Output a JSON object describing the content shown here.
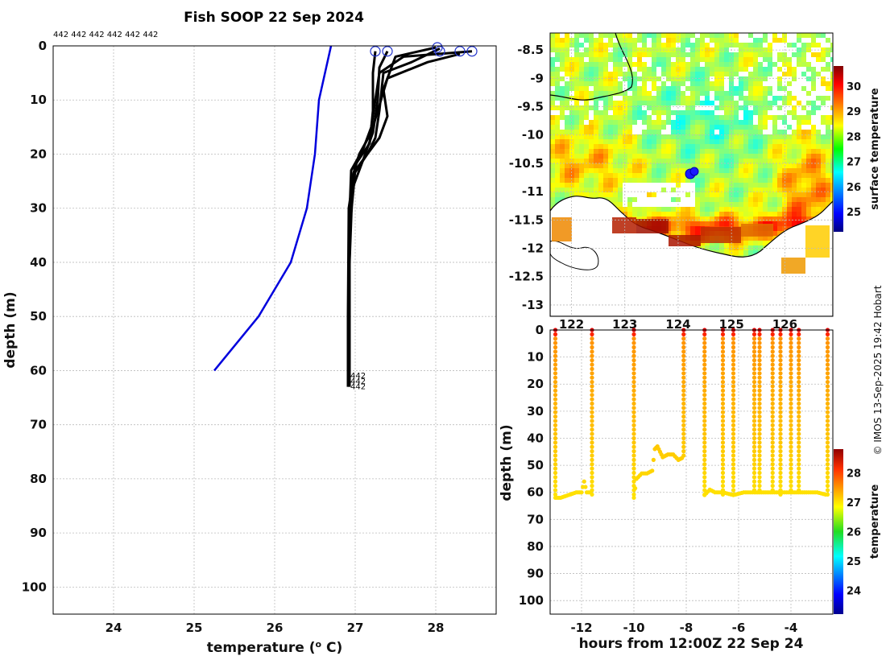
{
  "title": "Fish SOOP 22 Sep 2024",
  "platform_ids": "442 442 442 442 442 442",
  "credit": "© IMOS 13-Sep-2025 19:42 Hobart",
  "colors": {
    "climatology": "#0000dd",
    "profiles": "#000000",
    "surface_marker": "#2233cc"
  },
  "chart_data": [
    {
      "type": "line",
      "name": "temperature-profile",
      "title": "Fish SOOP 22 Sep 2024",
      "xlabel": "temperature (° C)",
      "ylabel": "depth (m)",
      "xlim": [
        23.25,
        28.75
      ],
      "ylim": [
        105,
        0
      ],
      "xticks": [
        24,
        25,
        26,
        27,
        28
      ],
      "yticks": [
        0,
        10,
        20,
        30,
        40,
        50,
        60,
        70,
        80,
        90,
        100
      ],
      "series": [
        {
          "name": "climatology",
          "color": "#0000dd",
          "points": [
            [
              26.7,
              0
            ],
            [
              26.55,
              10
            ],
            [
              26.5,
              20
            ],
            [
              26.4,
              30
            ],
            [
              26.2,
              40
            ],
            [
              25.8,
              50
            ],
            [
              25.25,
              60
            ]
          ]
        },
        {
          "name": "profile-1",
          "color": "#000000",
          "points": [
            [
              28.45,
              1
            ],
            [
              27.6,
              2
            ],
            [
              27.3,
              5
            ],
            [
              27.25,
              10
            ],
            [
              27.2,
              15
            ],
            [
              27.1,
              19
            ],
            [
              26.95,
              23
            ],
            [
              26.92,
              35
            ],
            [
              26.93,
              50
            ],
            [
              26.93,
              61
            ]
          ]
        },
        {
          "name": "profile-2",
          "color": "#000000",
          "points": [
            [
              28.3,
              1.5
            ],
            [
              27.9,
              3
            ],
            [
              27.4,
              6
            ],
            [
              27.3,
              11
            ],
            [
              27.2,
              16
            ],
            [
              27.05,
              20
            ],
            [
              26.95,
              25
            ],
            [
              26.92,
              35
            ],
            [
              26.92,
              50
            ],
            [
              26.92,
              62
            ]
          ]
        },
        {
          "name": "profile-3",
          "color": "#000000",
          "points": [
            [
              28.05,
              0.5
            ],
            [
              27.7,
              3
            ],
            [
              27.35,
              5
            ],
            [
              27.3,
              12
            ],
            [
              27.25,
              17
            ],
            [
              27.15,
              20
            ],
            [
              26.97,
              24
            ],
            [
              26.93,
              40
            ],
            [
              26.93,
              63
            ]
          ]
        },
        {
          "name": "profile-4",
          "color": "#000000",
          "points": [
            [
              27.4,
              1
            ],
            [
              27.3,
              4
            ],
            [
              27.28,
              10
            ],
            [
              27.22,
              16
            ],
            [
              27.1,
              21
            ],
            [
              26.95,
              27
            ],
            [
              26.92,
              45
            ],
            [
              26.92,
              62
            ]
          ]
        },
        {
          "name": "profile-5",
          "color": "#000000",
          "points": [
            [
              27.25,
              1
            ],
            [
              27.22,
              5
            ],
            [
              27.22,
              12
            ],
            [
              27.18,
              18
            ],
            [
              27.0,
              22
            ],
            [
              26.92,
              30
            ],
            [
              26.91,
              50
            ],
            [
              26.91,
              63
            ]
          ]
        },
        {
          "name": "profile-6",
          "color": "#000000",
          "points": [
            [
              28.0,
              0.3
            ],
            [
              27.5,
              2
            ],
            [
              27.35,
              8
            ],
            [
              27.4,
              13
            ],
            [
              27.3,
              17
            ],
            [
              27.2,
              19
            ],
            [
              27.0,
              23
            ],
            [
              26.93,
              34
            ],
            [
              26.92,
              55
            ],
            [
              26.92,
              61
            ]
          ]
        }
      ],
      "surface_markers": [
        [
          27.25,
          1
        ],
        [
          27.4,
          1
        ],
        [
          28.02,
          0.3
        ],
        [
          28.05,
          1
        ],
        [
          28.3,
          1
        ],
        [
          28.45,
          1
        ]
      ],
      "end_labels": [
        {
          "text": "442",
          "t": 27.0,
          "d": 61
        },
        {
          "text": "442",
          "t": 27.0,
          "d": 62
        },
        {
          "text": "442",
          "t": 27.0,
          "d": 63
        }
      ]
    },
    {
      "type": "heatmap",
      "name": "surface-temperature-map",
      "ylim": [
        -13.2,
        -8.2
      ],
      "yticks": [
        -8.5,
        -9,
        -9.5,
        -10,
        -10.5,
        -11,
        -11.5,
        -12,
        -12.5,
        -13
      ],
      "ytick_labels": [
        "-8.5",
        "-9",
        "-9.5",
        "-10",
        "-10.5",
        "-11",
        "-11.5",
        "-12",
        "-12.5",
        "-13"
      ],
      "xticks": [
        122,
        123,
        124,
        125,
        126
      ],
      "xtick_labels": [
        "122",
        "123",
        "124",
        "125",
        "126"
      ],
      "colorbar": {
        "label": "surface temperature",
        "range": [
          24.2,
          30.8
        ],
        "ticks": [
          25,
          26,
          27,
          28,
          29,
          30
        ]
      },
      "vessel_position": {
        "lon": 124.3,
        "lat": -10.7
      }
    },
    {
      "type": "scatter",
      "name": "depth-time-section",
      "xlabel": "hours from 12:00Z 22 Sep 24",
      "ylabel": "depth (m)",
      "xlim": [
        -13.2,
        -2.4
      ],
      "ylim": [
        105,
        0
      ],
      "xticks": [
        -12,
        -10,
        -8,
        -6,
        -4
      ],
      "yticks": [
        0,
        10,
        20,
        30,
        40,
        50,
        60,
        70,
        80,
        90,
        100
      ],
      "colorbar": {
        "label": "temperature",
        "range": [
          23.2,
          28.8
        ],
        "ticks": [
          24,
          25,
          26,
          27,
          28
        ]
      },
      "casts": [
        {
          "t": -13.0,
          "max_depth": 62
        },
        {
          "t": -11.6,
          "max_depth": 61
        },
        {
          "t": -10.0,
          "max_depth": 62
        },
        {
          "t": -8.1,
          "max_depth": 47
        },
        {
          "t": -7.3,
          "max_depth": 61
        },
        {
          "t": -6.6,
          "max_depth": 61
        },
        {
          "t": -6.2,
          "max_depth": 61
        },
        {
          "t": -5.4,
          "max_depth": 60
        },
        {
          "t": -5.2,
          "max_depth": 60
        },
        {
          "t": -4.7,
          "max_depth": 60
        },
        {
          "t": -4.4,
          "max_depth": 61
        },
        {
          "t": -4.0,
          "max_depth": 60
        },
        {
          "t": -3.7,
          "max_depth": 60
        },
        {
          "t": -2.6,
          "max_depth": 61
        }
      ],
      "bottom_track": [
        [
          -13.0,
          62
        ],
        [
          -12.8,
          62
        ],
        [
          -12.5,
          61
        ],
        [
          -12.2,
          60
        ],
        [
          -12.0,
          60
        ],
        [
          -11.9,
          56
        ],
        [
          -11.8,
          60
        ],
        [
          -11.6,
          60
        ],
        [
          -10.0,
          62
        ],
        [
          -9.9,
          55
        ],
        [
          -9.7,
          53
        ],
        [
          -9.5,
          53
        ],
        [
          -9.3,
          52
        ],
        [
          -9.2,
          44
        ],
        [
          -9.1,
          43
        ],
        [
          -9.0,
          45
        ],
        [
          -8.9,
          47
        ],
        [
          -8.7,
          46
        ],
        [
          -8.5,
          46
        ],
        [
          -8.3,
          48
        ],
        [
          -8.1,
          47
        ],
        [
          -7.3,
          61
        ],
        [
          -7.1,
          59
        ],
        [
          -6.9,
          60
        ],
        [
          -6.6,
          60
        ],
        [
          -6.2,
          61
        ],
        [
          -5.8,
          60
        ],
        [
          -5.4,
          60
        ],
        [
          -5.2,
          60
        ],
        [
          -4.7,
          60
        ],
        [
          -4.4,
          60
        ],
        [
          -4.0,
          60
        ],
        [
          -3.7,
          60
        ],
        [
          -3.4,
          60
        ],
        [
          -3.0,
          60
        ],
        [
          -2.6,
          61
        ]
      ]
    }
  ]
}
